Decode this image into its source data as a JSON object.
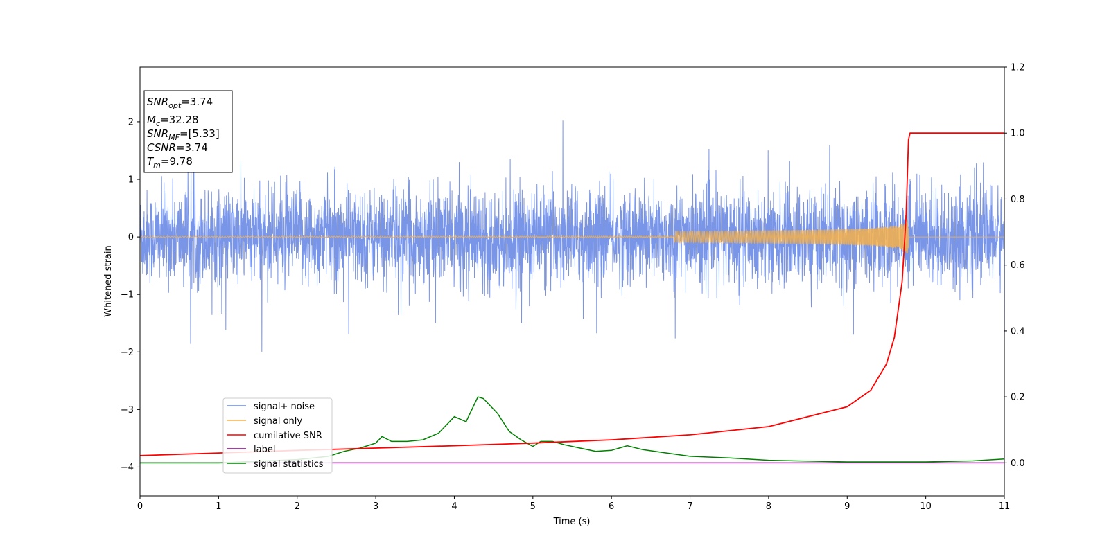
{
  "chart_data": {
    "type": "line",
    "xlabel": "Time (s)",
    "ylabel": "Whitened strain",
    "xlim": [
      0,
      11
    ],
    "ylim": [
      -4.5,
      2.95
    ],
    "y2lim": [
      -0.1,
      1.2
    ],
    "x_ticks": [
      0,
      1,
      2,
      3,
      4,
      5,
      6,
      7,
      8,
      9,
      10,
      11
    ],
    "y_ticks": [
      -4,
      -3,
      -2,
      -1,
      0,
      1,
      2
    ],
    "y_tick_labels": [
      "−4",
      "−3",
      "−2",
      "−1",
      "0",
      "1",
      "2"
    ],
    "y2_ticks": [
      0.0,
      0.2,
      0.4,
      0.6,
      0.8,
      1.0,
      1.2
    ],
    "y2_tick_labels": [
      "0.0",
      "0.2",
      "0.4",
      "0.6",
      "0.8",
      "1.0",
      "1.2"
    ],
    "grid": false,
    "legend_position": "lower-left",
    "info_box": {
      "snr_opt_label": "SNR",
      "snr_opt_sub": "opt",
      "snr_opt_value": "=3.74",
      "mc_label": "M",
      "mc_sub": "c",
      "mc_value": "=32.28",
      "snr_mf_label": "SNR",
      "snr_mf_sub": "MF",
      "snr_mf_value": "=[5.33]",
      "csnr_label": "CSNR",
      "csnr_value": "=3.74",
      "tm_label": "T",
      "tm_sub": "m",
      "tm_value": "=9.78"
    },
    "series": [
      {
        "name": "signal+ noise",
        "color": "#6a89e6",
        "axis": "left",
        "description_values": {
          "x_range": [
            0,
            11
          ],
          "noise_std": 0.4,
          "noise_min": -2.2,
          "noise_max": 2.02
        }
      },
      {
        "name": "signal only",
        "color": "#f5b04a",
        "axis": "left",
        "chirp_peak_time": 9.78,
        "chirp_peak_amplitude": 0.35
      },
      {
        "name": "cumilative SNR",
        "color": "#ff0000",
        "axis": "right",
        "x": [
          0,
          1,
          2,
          3,
          4,
          5,
          6,
          7,
          8,
          9,
          9.3,
          9.5,
          9.6,
          9.7,
          9.75,
          9.78,
          9.8,
          11
        ],
        "y": [
          0.022,
          0.03,
          0.038,
          0.045,
          0.052,
          0.06,
          0.07,
          0.085,
          0.11,
          0.17,
          0.22,
          0.3,
          0.38,
          0.55,
          0.75,
          0.98,
          1.0,
          1.0
        ]
      },
      {
        "name": "label",
        "color": "#800080",
        "axis": "right",
        "x": [
          0,
          11
        ],
        "y": [
          0.0,
          0.0
        ]
      },
      {
        "name": "signal statistics",
        "color": "#008000",
        "axis": "right",
        "x": [
          0,
          1,
          2,
          2.4,
          2.6,
          2.8,
          3.0,
          3.08,
          3.2,
          3.4,
          3.6,
          3.8,
          3.9,
          4.0,
          4.15,
          4.2,
          4.3,
          4.37,
          4.45,
          4.55,
          4.7,
          4.85,
          5.0,
          5.1,
          5.25,
          5.4,
          5.6,
          5.8,
          6.0,
          6.2,
          6.4,
          6.7,
          7.0,
          7.5,
          8.0,
          9.0,
          10.0,
          10.6,
          11.0
        ],
        "y": [
          0.0,
          0.0,
          0.01,
          0.02,
          0.035,
          0.045,
          0.06,
          0.08,
          0.065,
          0.065,
          0.07,
          0.09,
          0.115,
          0.14,
          0.125,
          0.15,
          0.2,
          0.195,
          0.175,
          0.15,
          0.095,
          0.07,
          0.05,
          0.065,
          0.065,
          0.055,
          0.045,
          0.035,
          0.038,
          0.052,
          0.04,
          0.03,
          0.02,
          0.015,
          0.008,
          0.003,
          0.003,
          0.006,
          0.012
        ]
      }
    ]
  }
}
